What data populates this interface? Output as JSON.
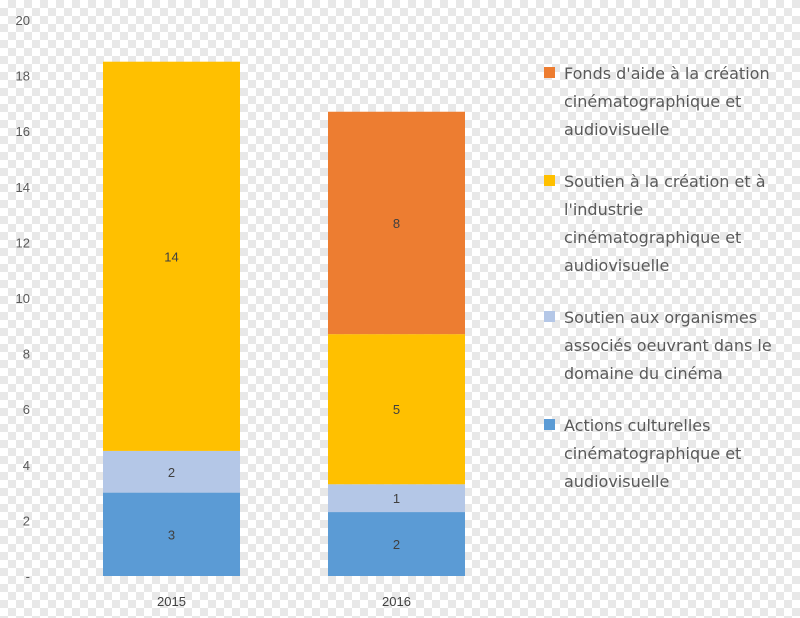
{
  "chart_data": {
    "type": "bar",
    "stacked": true,
    "categories": [
      "2015",
      "2016"
    ],
    "series": [
      {
        "name": "Actions culturelles cinématographique et audiovisuelle",
        "color": "#5B9BD5",
        "values": [
          3,
          2.3
        ],
        "labels": [
          "3",
          "2"
        ]
      },
      {
        "name": "Soutien aux organismes associés oeuvrant dans le domaine du cinéma",
        "color": "#B4C7E7",
        "values": [
          1.5,
          1
        ],
        "labels": [
          "2",
          "1"
        ]
      },
      {
        "name": "Soutien à la création et à l'industrie cinématographique et audiovisuelle",
        "color": "#FFC000",
        "values": [
          14,
          5.4
        ],
        "labels": [
          "14",
          "5"
        ]
      },
      {
        "name": "Fonds d'aide à la création cinématographique et audiovisuelle",
        "color": "#ED7D31",
        "values": [
          0,
          8
        ],
        "labels": [
          "",
          "8"
        ]
      }
    ],
    "yticks": [
      "-",
      "2",
      "4",
      "6",
      "8",
      "10",
      "12",
      "14",
      "16",
      "18",
      "20"
    ],
    "ylim": [
      0,
      20
    ],
    "legend": {
      "position": "right",
      "order": [
        3,
        2,
        1,
        0
      ]
    },
    "grid": false
  }
}
